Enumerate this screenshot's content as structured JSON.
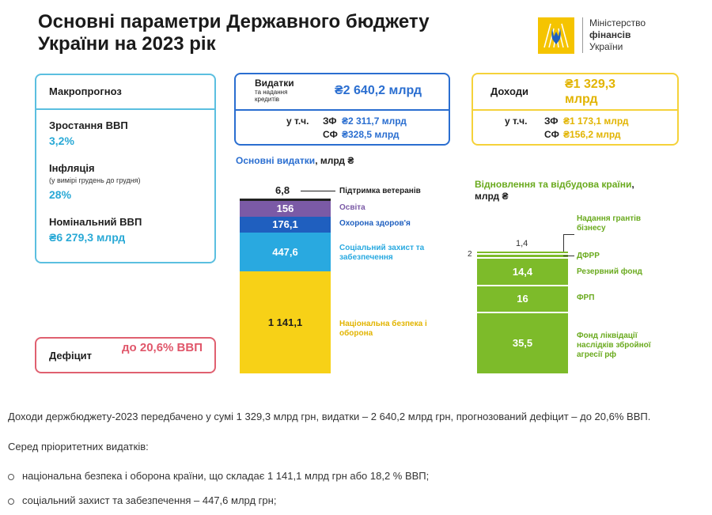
{
  "title": "Основні параметри Державного бюджету України на 2023 рік",
  "logo": {
    "line1": "Міністерство",
    "line2": "фінансів",
    "line3": "України"
  },
  "macro": {
    "header": "Макропрогноз",
    "gdp_growth_label": "Зростання ВВП",
    "gdp_growth_value": "3,2%",
    "inflation_label": "Інфляція",
    "inflation_note": "(у вимірі грудень до грудня)",
    "inflation_value": "28%",
    "nominal_gdp_label": "Номінальний ВВП",
    "nominal_gdp_value": "₴6 279,3 млрд"
  },
  "deficit": {
    "label": "Дефіцит",
    "value": "до 20,6% ВВП"
  },
  "expenditures": {
    "label": "Видатки",
    "sublabel": "та надання кредитів",
    "total": "₴2 640,2 млрд",
    "incl": "у т.ч.",
    "zf_label": "ЗФ",
    "zf_value": "₴2 311,7 млрд",
    "sf_label": "СФ",
    "sf_value": "₴328,5 млрд"
  },
  "revenues": {
    "label": "Доходи",
    "total": "₴1 329,3 млрд",
    "incl": "у т.ч.",
    "zf_label": "ЗФ",
    "zf_value": "₴1 173,1 млрд",
    "sf_label": "СФ",
    "sf_value": "₴156,2 млрд"
  },
  "main_exp": {
    "title_part1": "Основні видатки",
    "title_part2": ", млрд ₴",
    "colors": {
      "veterans": "#222222",
      "education": "#7b5aa6",
      "health": "#1f5fbf",
      "social": "#29a9e0",
      "security": "#f7d117"
    },
    "veterans_value": "6,8",
    "veterans_label": "Підтримка ветеранів",
    "education_value": "156",
    "education_label": "Освіта",
    "health_value": "176,1",
    "health_label": "Охорона здоров'я",
    "social_value": "447,6",
    "social_label": "Соціальний захист та забезпечення",
    "security_value": "1 141,1",
    "security_label": "Національна безпека і оборона"
  },
  "recovery": {
    "title_part1": "Відновлення та відбудова країни",
    "title_part2": ", млрд ₴",
    "color": "#7dbb2a",
    "grants_value": "1,4",
    "grants_label": "Надання грантів бізнесу",
    "dfrr_value": "2",
    "dfrr_label": "ДФРР",
    "reserve_value": "14,4",
    "reserve_label": "Резервний фонд",
    "frp_value": "16",
    "frp_label": "ФРП",
    "liq_value": "35,5",
    "liq_label": "Фонд ліквідації наслідків збройної агресії рф"
  },
  "text": {
    "p1": "Доходи держбюджету-2023 передбачено у сумі 1 329,3 млрд грн, видатки – 2 640,2 млрд грн, прогнозований дефіцит – до 20,6% ВВП.",
    "p2": "Серед пріоритетних видатків:",
    "b1": "національна безпека і оборона країни, що складає 1 141,1 млрд грн або 18,2 % ВВП;",
    "b2": "соціальний захист та забезпечення – 447,6 млрд грн;"
  }
}
